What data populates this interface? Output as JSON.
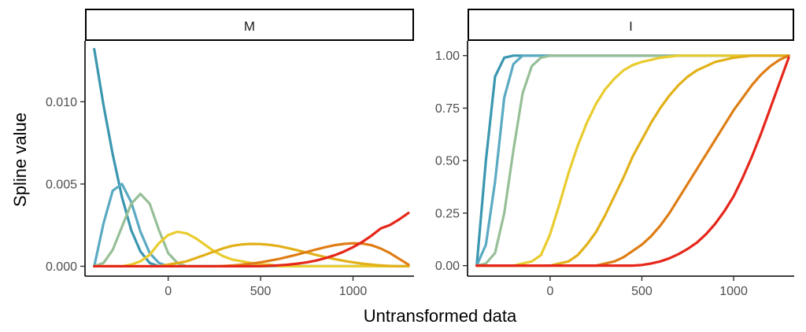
{
  "chart_data": {
    "type": "line",
    "xlabel": "Untransformed data",
    "ylabel": "Spline value",
    "grid": false,
    "legend": "none",
    "colors": [
      "#3a97b0",
      "#5aaac2",
      "#97bf97",
      "#e9cc2e",
      "#e2b019",
      "#df7d15",
      "#e5261a"
    ],
    "knot_x": [
      -400,
      -350,
      -300,
      -250,
      -200,
      -150,
      -100,
      -50,
      0,
      50,
      100,
      150,
      200,
      250,
      300,
      350,
      400,
      450,
      500,
      550,
      600,
      650,
      700,
      750,
      800,
      850,
      900,
      950,
      1000,
      1050,
      1100,
      1150,
      1200,
      1250,
      1300
    ],
    "panels": [
      {
        "strip": "M",
        "xlim": [
          -450,
          1330
        ],
        "ylim": [
          -0.0006,
          0.0137
        ],
        "x_ticks": [
          0,
          500,
          1000
        ],
        "x_tick_labels": [
          "0",
          "500",
          "1000"
        ],
        "y_ticks": [
          0,
          0.005,
          0.01
        ],
        "y_tick_labels": [
          "0.000",
          "0.005",
          "0.010"
        ],
        "series": [
          {
            "color": "#3a97b0",
            "values": [
              0.0132,
              0.0098,
              0.0068,
              0.0042,
              0.0022,
              0.0009,
              0.0002,
              0,
              0,
              0,
              0,
              0,
              0,
              0,
              0,
              0,
              0,
              0,
              0,
              0,
              0,
              0,
              0,
              0,
              0,
              0,
              0,
              0,
              0,
              0,
              0,
              0,
              0,
              0,
              0
            ]
          },
          {
            "color": "#5aaac2",
            "values": [
              0,
              0.0026,
              0.0046,
              0.005,
              0.0039,
              0.0021,
              0.0008,
              0.0002,
              0,
              0,
              0,
              0,
              0,
              0,
              0,
              0,
              0,
              0,
              0,
              0,
              0,
              0,
              0,
              0,
              0,
              0,
              0,
              0,
              0,
              0,
              0,
              0,
              0,
              0,
              0
            ]
          },
          {
            "color": "#97bf97",
            "values": [
              0,
              0.0002,
              0.001,
              0.0024,
              0.0038,
              0.0044,
              0.0038,
              0.0022,
              0.0008,
              0.0002,
              0,
              0,
              0,
              0,
              0,
              0,
              0,
              0,
              0,
              0,
              0,
              0,
              0,
              0,
              0,
              0,
              0,
              0,
              0,
              0,
              0,
              0,
              0,
              0,
              0
            ]
          },
          {
            "color": "#e9cc2e",
            "values": [
              0,
              0,
              0,
              0,
              0.0001,
              0.0003,
              0.0007,
              0.0014,
              0.0019,
              0.0021,
              0.002,
              0.0017,
              0.0013,
              0.0009,
              0.0006,
              0.0004,
              0.0003,
              0.0002,
              0.0001,
              0.0001,
              0,
              0,
              0,
              0,
              0,
              0,
              0,
              0,
              0,
              0,
              0,
              0,
              0,
              0,
              0
            ]
          },
          {
            "color": "#e2b019",
            "values": [
              0,
              0,
              0,
              0,
              0,
              0,
              0,
              0,
              0.0001,
              0.0002,
              0.0003,
              0.0005,
              0.0007,
              0.0009,
              0.0011,
              0.00125,
              0.00133,
              0.00136,
              0.00135,
              0.0013,
              0.00122,
              0.0011,
              0.00097,
              0.00083,
              0.00069,
              0.00056,
              0.00044,
              0.00033,
              0.00024,
              0.00016,
              0.0001,
              5e-05,
              2e-05,
              0,
              0
            ]
          },
          {
            "color": "#df7d15",
            "values": [
              0,
              0,
              0,
              0,
              0,
              0,
              0,
              0,
              0,
              0,
              0,
              0,
              0,
              0,
              2e-05,
              5e-05,
              0.0001,
              0.00016,
              0.00024,
              0.00034,
              0.00045,
              0.00058,
              0.00072,
              0.00087,
              0.00102,
              0.00116,
              0.00128,
              0.00136,
              0.0014,
              0.00138,
              0.00128,
              0.00108,
              0.0008,
              0.00045,
              0.0001
            ]
          },
          {
            "color": "#e5261a",
            "values": [
              0,
              0,
              0,
              0,
              0,
              0,
              0,
              0,
              0,
              0,
              0,
              0,
              0,
              0,
              0,
              0,
              0,
              0,
              1e-05,
              3e-05,
              6e-05,
              0.0001,
              0.00016,
              0.00024,
              0.00035,
              0.00049,
              0.00067,
              0.00089,
              0.00116,
              0.00148,
              0.00186,
              0.0023,
              0.00251,
              0.00285,
              0.00324
            ]
          }
        ]
      },
      {
        "strip": "I",
        "xlim": [
          -450,
          1330
        ],
        "ylim": [
          -0.05,
          1.07
        ],
        "x_ticks": [
          0,
          500,
          1000
        ],
        "x_tick_labels": [
          "0",
          "500",
          "1000"
        ],
        "y_ticks": [
          0,
          0.25,
          0.5,
          0.75,
          1
        ],
        "y_tick_labels": [
          "0.00",
          "0.25",
          "0.50",
          "0.75",
          "1.00"
        ],
        "series": [
          {
            "color": "#3a97b0",
            "values": [
              0,
              0.5,
              0.9,
              0.99,
              1,
              1,
              1,
              1,
              1,
              1,
              1,
              1,
              1,
              1,
              1,
              1,
              1,
              1,
              1,
              1,
              1,
              1,
              1,
              1,
              1,
              1,
              1,
              1,
              1,
              1,
              1,
              1,
              1,
              1,
              1
            ]
          },
          {
            "color": "#5aaac2",
            "values": [
              0,
              0.1,
              0.4,
              0.8,
              0.96,
              1,
              1,
              1,
              1,
              1,
              1,
              1,
              1,
              1,
              1,
              1,
              1,
              1,
              1,
              1,
              1,
              1,
              1,
              1,
              1,
              1,
              1,
              1,
              1,
              1,
              1,
              1,
              1,
              1,
              1
            ]
          },
          {
            "color": "#97bf97",
            "values": [
              0,
              0.01,
              0.06,
              0.25,
              0.55,
              0.82,
              0.95,
              0.99,
              1,
              1,
              1,
              1,
              1,
              1,
              1,
              1,
              1,
              1,
              1,
              1,
              1,
              1,
              1,
              1,
              1,
              1,
              1,
              1,
              1,
              1,
              1,
              1,
              1,
              1,
              1
            ]
          },
          {
            "color": "#e9cc2e",
            "values": [
              0,
              0,
              0,
              0,
              0,
              0.01,
              0.02,
              0.05,
              0.15,
              0.29,
              0.44,
              0.57,
              0.68,
              0.77,
              0.84,
              0.89,
              0.93,
              0.955,
              0.97,
              0.98,
              0.99,
              0.995,
              1,
              1,
              1,
              1,
              1,
              1,
              1,
              1,
              1,
              1,
              1,
              1,
              1
            ]
          },
          {
            "color": "#e2b019",
            "values": [
              0,
              0,
              0,
              0,
              0,
              0,
              0,
              0,
              0,
              0.01,
              0.02,
              0.05,
              0.1,
              0.16,
              0.24,
              0.33,
              0.42,
              0.52,
              0.6,
              0.68,
              0.75,
              0.81,
              0.86,
              0.9,
              0.93,
              0.95,
              0.97,
              0.98,
              0.99,
              0.995,
              1,
              1,
              1,
              1,
              1
            ]
          },
          {
            "color": "#df7d15",
            "values": [
              0,
              0,
              0,
              0,
              0,
              0,
              0,
              0,
              0,
              0,
              0,
              0,
              0,
              0,
              0.01,
              0.02,
              0.04,
              0.07,
              0.1,
              0.14,
              0.19,
              0.25,
              0.32,
              0.39,
              0.46,
              0.53,
              0.6,
              0.67,
              0.74,
              0.8,
              0.86,
              0.91,
              0.95,
              0.98,
              1
            ]
          },
          {
            "color": "#e5261a",
            "values": [
              0,
              0,
              0,
              0,
              0,
              0,
              0,
              0,
              0,
              0,
              0,
              0,
              0,
              0,
              0,
              0,
              0,
              0,
              0.003,
              0.01,
              0.02,
              0.035,
              0.055,
              0.08,
              0.11,
              0.15,
              0.2,
              0.26,
              0.33,
              0.42,
              0.52,
              0.63,
              0.75,
              0.87,
              0.99
            ]
          }
        ]
      }
    ]
  }
}
